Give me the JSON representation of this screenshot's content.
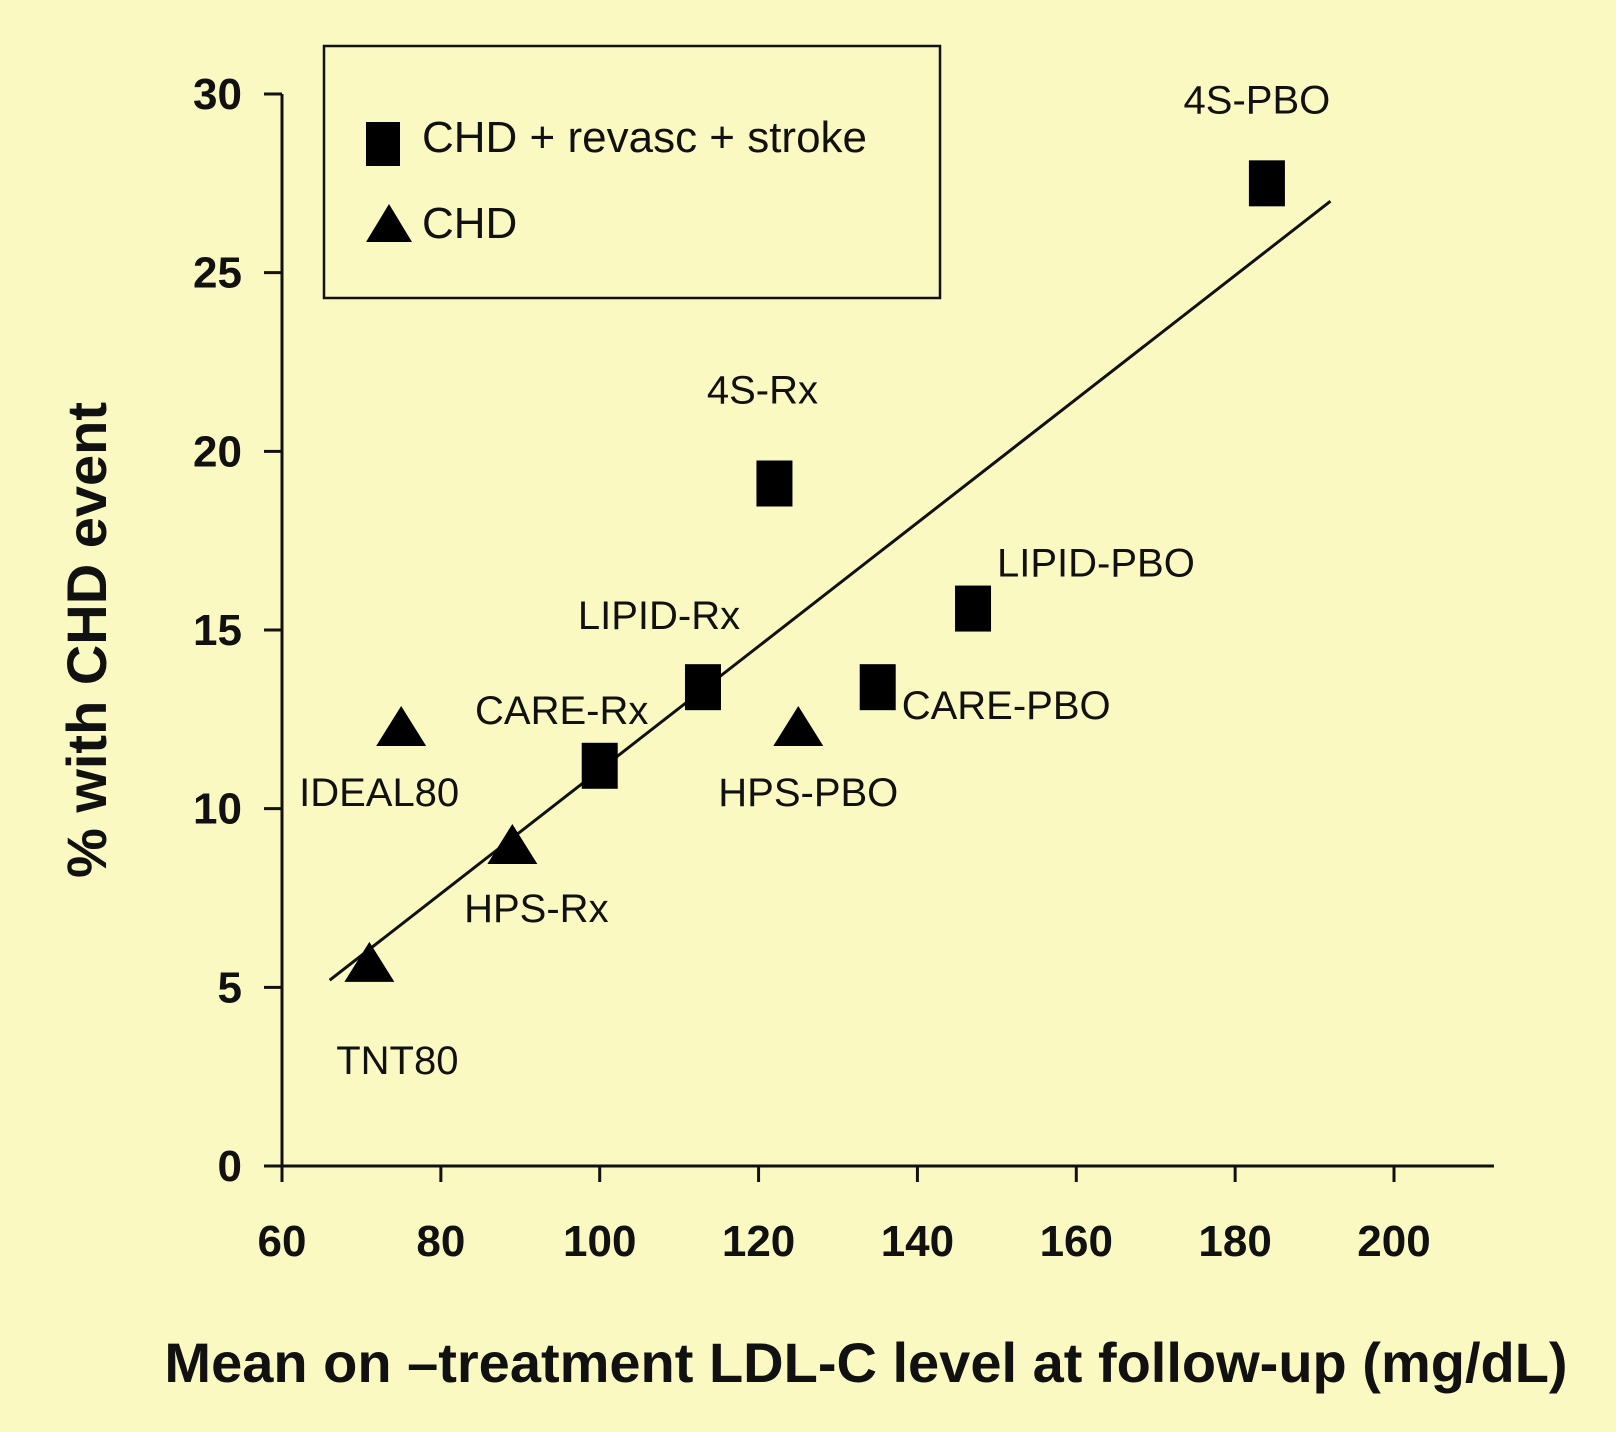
{
  "chart_data": {
    "type": "scatter",
    "xlabel": "Mean on –treatment LDL-C level at follow-up (mg/dL)",
    "ylabel": "% with CHD event",
    "xlim": [
      60,
      215
    ],
    "ylim": [
      0,
      30
    ],
    "xticks": [
      60,
      80,
      100,
      120,
      140,
      160,
      180,
      200
    ],
    "yticks": [
      0,
      5,
      10,
      15,
      20,
      25,
      30
    ],
    "legend_position": "top-left",
    "series": [
      {
        "name": "CHD + revasc + stroke",
        "marker": "square",
        "points": [
          {
            "label": "4S-PBO",
            "x": 184,
            "y": 27.5
          },
          {
            "label": "4S-Rx",
            "x": 122,
            "y": 19.1
          },
          {
            "label": "LIPID-PBO",
            "x": 147,
            "y": 15.6
          },
          {
            "label": "LIPID-Rx",
            "x": 113,
            "y": 13.4
          },
          {
            "label": "CARE-PBO",
            "x": 135,
            "y": 13.4
          },
          {
            "label": "CARE-Rx",
            "x": 100,
            "y": 11.2
          }
        ]
      },
      {
        "name": "CHD",
        "marker": "triangle",
        "points": [
          {
            "label": "IDEAL80",
            "x": 75,
            "y": 12.2
          },
          {
            "label": "HPS-PBO",
            "x": 125,
            "y": 12.2
          },
          {
            "label": "HPS-Rx",
            "x": 89,
            "y": 8.9
          },
          {
            "label": "TNT80",
            "x": 71,
            "y": 5.6
          }
        ]
      }
    ],
    "trendline": {
      "x": [
        66,
        192
      ],
      "y": [
        5.2,
        27.0
      ]
    }
  }
}
